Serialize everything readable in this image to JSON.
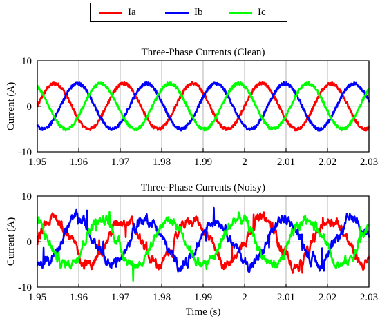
{
  "legend": {
    "items": [
      {
        "label": "Ia",
        "color": "#ff0000"
      },
      {
        "label": "Ib",
        "color": "#0000ff"
      },
      {
        "label": "Ic",
        "color": "#00ff00"
      }
    ]
  },
  "chart_data": [
    {
      "type": "line",
      "title": "Three-Phase Currents (Clean)",
      "xlabel": "",
      "ylabel": "Current (A)",
      "xlim": [
        1.95,
        2.03
      ],
      "ylim": [
        -10,
        10
      ],
      "xticks": [
        "1.95",
        "1.96",
        "1.97",
        "1.98",
        "1.99",
        "2",
        "2.01",
        "2.02",
        "2.03"
      ],
      "yticks": [
        "-10",
        "0",
        "10"
      ],
      "grid": true,
      "frequency_hz": 60,
      "series": [
        {
          "name": "Ia",
          "color": "#ff0000",
          "amplitude": 5,
          "phase_deg": 0
        },
        {
          "name": "Ib",
          "color": "#0000ff",
          "amplitude": 5,
          "phase_deg": -120
        },
        {
          "name": "Ic",
          "color": "#00ff00",
          "amplitude": 5,
          "phase_deg": 120
        }
      ]
    },
    {
      "type": "line",
      "title": "Three-Phase Currents (Noisy)",
      "xlabel": "Time (s)",
      "ylabel": "Current (A)",
      "xlim": [
        1.95,
        2.03
      ],
      "ylim": [
        -10,
        10
      ],
      "xticks": [
        "1.95",
        "1.96",
        "1.97",
        "1.98",
        "1.99",
        "2",
        "2.01",
        "2.02",
        "2.03"
      ],
      "yticks": [
        "-10",
        "0",
        "10"
      ],
      "grid": true,
      "frequency_hz": 60,
      "series": [
        {
          "name": "Ia",
          "color": "#ff0000",
          "amplitude": 5,
          "phase_deg": 0
        },
        {
          "name": "Ib",
          "color": "#0000ff",
          "amplitude": 5,
          "phase_deg": -120
        },
        {
          "name": "Ic",
          "color": "#00ff00",
          "amplitude": 5,
          "phase_deg": 120
        }
      ]
    }
  ]
}
